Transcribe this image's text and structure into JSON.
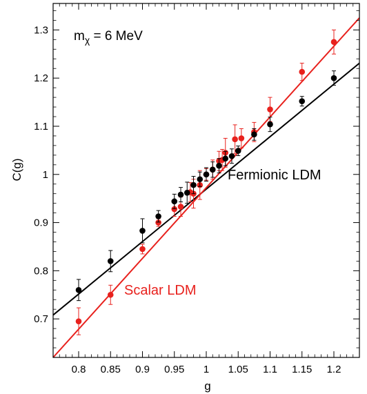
{
  "chart_data": {
    "type": "scatter",
    "title": "",
    "annotation": {
      "m_symbol": "m",
      "m_subscript": "χ",
      "rest": " = 6 MeV"
    },
    "xlabel": "g",
    "ylabel": "C(g)",
    "xlim": [
      0.76,
      1.24
    ],
    "ylim": [
      0.62,
      1.355
    ],
    "xticks": [
      "0.8",
      "0.85",
      "0.9",
      "0.95",
      "1",
      "1.05",
      "1.1",
      "1.15",
      "1.2"
    ],
    "yticks": [
      "0.7",
      "0.8",
      "0.9",
      "1",
      "1.1",
      "1.2",
      "1.3"
    ],
    "grid": false,
    "series": [
      {
        "name": "Fermionic LDM",
        "color": "#000000",
        "fit_line": {
          "x": [
            0.76,
            1.24
          ],
          "y": [
            0.708,
            1.231
          ]
        },
        "x": [
          0.8,
          0.85,
          0.9,
          0.925,
          0.95,
          0.96,
          0.97,
          0.98,
          0.99,
          1.0,
          1.01,
          1.02,
          1.03,
          1.04,
          1.05,
          1.075,
          1.1,
          1.15,
          1.2
        ],
        "y": [
          0.76,
          0.82,
          0.883,
          0.913,
          0.944,
          0.958,
          0.962,
          0.978,
          0.99,
          1.0,
          1.01,
          1.018,
          1.033,
          1.038,
          1.049,
          1.083,
          1.104,
          1.152,
          1.2
        ],
        "err": [
          0.022,
          0.022,
          0.025,
          0.012,
          0.015,
          0.015,
          0.022,
          0.018,
          0.015,
          0.014,
          0.016,
          0.015,
          0.015,
          0.015,
          0.01,
          0.012,
          0.015,
          0.01,
          0.015
        ]
      },
      {
        "name": "Scalar LDM",
        "color": "#e8211d",
        "fit_line": {
          "x": [
            0.76,
            1.24
          ],
          "y": [
            0.62,
            1.325
          ]
        },
        "x": [
          0.8,
          0.85,
          0.9,
          0.925,
          0.95,
          0.96,
          0.975,
          0.98,
          0.99,
          1.0,
          1.01,
          1.02,
          1.025,
          1.03,
          1.045,
          1.055,
          1.075,
          1.1,
          1.15,
          1.2
        ],
        "y": [
          0.695,
          0.75,
          0.845,
          0.9,
          0.928,
          0.933,
          0.963,
          0.96,
          0.978,
          1.0,
          1.01,
          1.028,
          1.03,
          1.045,
          1.073,
          1.075,
          1.088,
          1.135,
          1.213,
          1.275
        ],
        "err": [
          0.028,
          0.02,
          0.01,
          0.008,
          0.015,
          0.02,
          0.02,
          0.03,
          0.03,
          0.012,
          0.02,
          0.02,
          0.022,
          0.03,
          0.03,
          0.02,
          0.02,
          0.025,
          0.018,
          0.025
        ]
      }
    ]
  }
}
